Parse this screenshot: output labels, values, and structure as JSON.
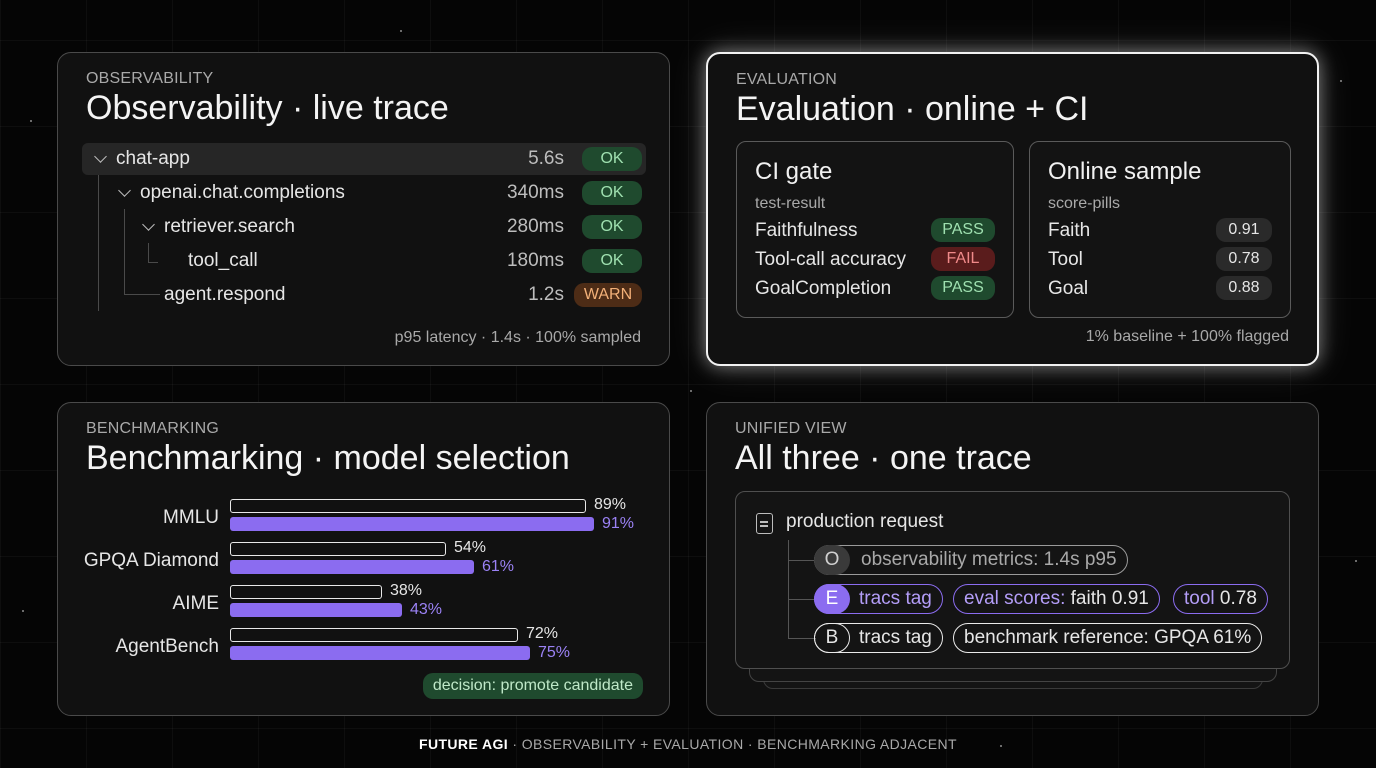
{
  "observability": {
    "eyebrow": "OBSERVABILITY",
    "title": "Observability · live trace",
    "spans": [
      {
        "name": "chat-app",
        "duration": "5.6s",
        "status": "OK"
      },
      {
        "name": "openai.chat.completions",
        "duration": "340ms",
        "status": "OK"
      },
      {
        "name": "retriever.search",
        "duration": "280ms",
        "status": "OK"
      },
      {
        "name": "tool_call",
        "duration": "180ms",
        "status": "OK"
      },
      {
        "name": "agent.respond",
        "duration": "1.2s",
        "status": "WARN"
      }
    ],
    "footer": "p95 latency · 1.4s · 100% sampled"
  },
  "evaluation": {
    "eyebrow": "EVALUATION",
    "title": "Evaluation · online + CI",
    "ci_gate": {
      "title": "CI gate",
      "subtitle": "test-result",
      "rows": [
        {
          "label": "Faithfulness",
          "result": "PASS"
        },
        {
          "label": "Tool-call accuracy",
          "result": "FAIL"
        },
        {
          "label": "GoalCompletion",
          "result": "PASS"
        }
      ]
    },
    "online_sample": {
      "title": "Online sample",
      "subtitle": "score-pills",
      "rows": [
        {
          "label": "Faith",
          "score": "0.91"
        },
        {
          "label": "Tool",
          "score": "0.78"
        },
        {
          "label": "Goal",
          "score": "0.88"
        }
      ]
    },
    "footer": "1% baseline + 100% flagged"
  },
  "benchmarking": {
    "eyebrow": "BENCHMARKING",
    "title": "Benchmarking · model selection",
    "rows": [
      {
        "label": "MMLU",
        "baseline": 89,
        "candidate": 91,
        "baseline_label": "89%",
        "candidate_label": "91%"
      },
      {
        "label": "GPQA Diamond",
        "baseline": 54,
        "candidate": 61,
        "baseline_label": "54%",
        "candidate_label": "61%"
      },
      {
        "label": "AIME",
        "baseline": 38,
        "candidate": 43,
        "baseline_label": "38%",
        "candidate_label": "43%"
      },
      {
        "label": "AgentBench",
        "baseline": 72,
        "candidate": 75,
        "baseline_label": "72%",
        "candidate_label": "75%"
      }
    ],
    "decision": "decision: promote candidate"
  },
  "unified": {
    "eyebrow": "UNIFIED VIEW",
    "title": "All three · one trace",
    "request_title": "production request",
    "rows": {
      "o": {
        "letter": "O",
        "chip": "observability metrics: 1.4s p95"
      },
      "e": {
        "letter": "E",
        "tag": "tracs tag",
        "eval_prefix": "eval scores:",
        "eval_value": "faith 0.91",
        "tool_prefix": "tool",
        "tool_value": "0.78"
      },
      "b": {
        "letter": "B",
        "tag": "tracs tag",
        "chip": "benchmark reference: GPQA 61%"
      }
    }
  },
  "footer": {
    "brand": "FUTURE AGI",
    "text": " · OBSERVABILITY + EVALUATION · BENCHMARKING ADJACENT"
  }
}
